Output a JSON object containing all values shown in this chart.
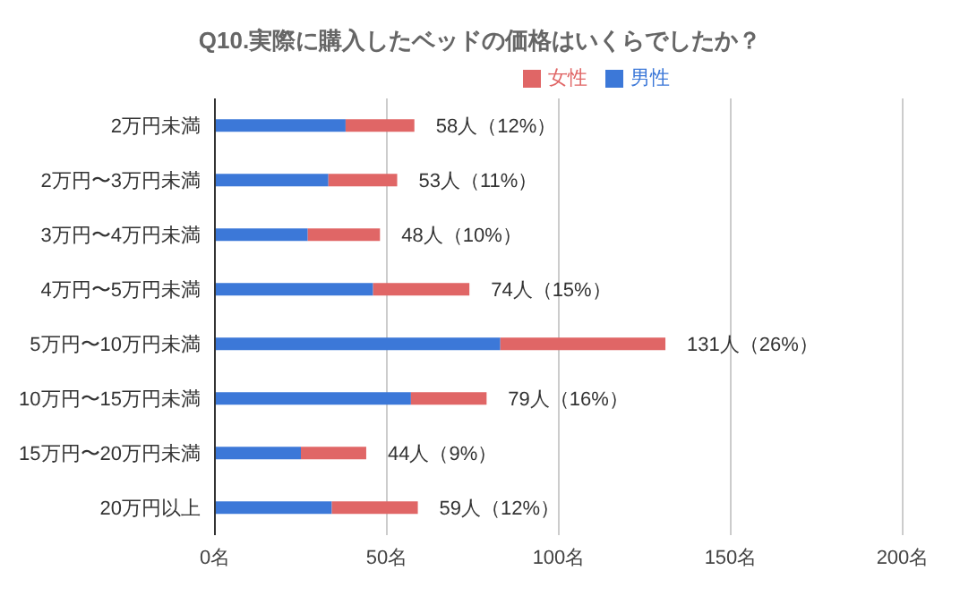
{
  "chart_data": {
    "type": "bar",
    "orientation": "horizontal",
    "stacked": true,
    "title": "Q10.実際に購入したベッドの価格はいくらでしたか？",
    "categories": [
      "2万円未満",
      "2万円〜3万円未満",
      "3万円〜4万円未満",
      "4万円〜5万円未満",
      "5万円〜10万円未満",
      "10万円〜15万円未満",
      "15万円〜20万円未満",
      "20万円以上"
    ],
    "series": [
      {
        "name": "男性",
        "color": "#3c78d8",
        "values": [
          38,
          33,
          27,
          46,
          83,
          57,
          25,
          34
        ]
      },
      {
        "name": "女性",
        "color": "#e06666",
        "values": [
          20,
          20,
          21,
          28,
          48,
          22,
          19,
          25
        ]
      }
    ],
    "totals": [
      "58人（12%）",
      "53人（11%）",
      "48人（10%）",
      "74人（15%）",
      "131人（26%）",
      "79人（16%）",
      "44人（9%）",
      "59人（12%）"
    ],
    "xlim": [
      0,
      200
    ],
    "xticks": [
      {
        "value": 0,
        "label": "0名"
      },
      {
        "value": 50,
        "label": "50名"
      },
      {
        "value": 100,
        "label": "100名"
      },
      {
        "value": 150,
        "label": "150名"
      },
      {
        "value": 200,
        "label": "200名"
      }
    ],
    "grid": "x",
    "legend": "top"
  }
}
